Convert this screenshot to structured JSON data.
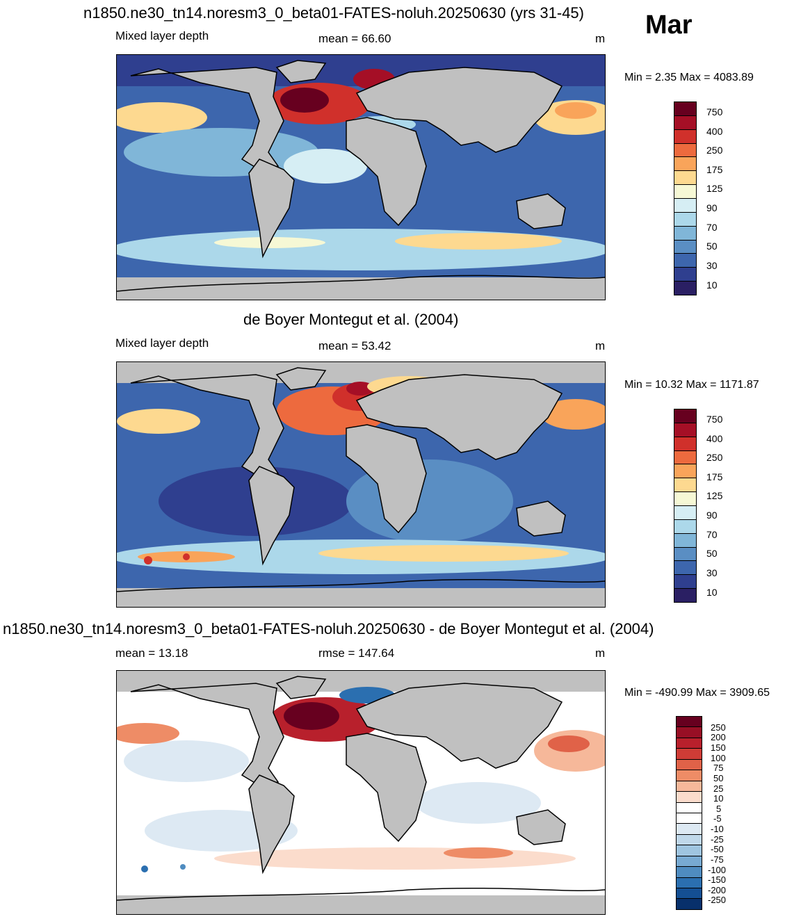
{
  "month": "Mar",
  "panels": [
    {
      "title": "n1850.ne30_tn14.noresm3_0_beta01-FATES-noluh.20250630 (yrs 31-45)",
      "left_label": "Mixed layer depth",
      "center_label": "mean =  66.60",
      "units": "m",
      "minmax": "Min =   2.35 Max = 4083.89",
      "colorbar_labels": [
        "750",
        "400",
        "250",
        "175",
        "125",
        "90",
        "70",
        "50",
        "30",
        "10"
      ]
    },
    {
      "title": "de Boyer Montegut et al. (2004)",
      "left_label": "Mixed layer depth",
      "center_label": "mean =  53.42",
      "units": "m",
      "minmax": "Min =  10.32 Max = 1171.87",
      "colorbar_labels": [
        "750",
        "400",
        "250",
        "175",
        "125",
        "90",
        "70",
        "50",
        "30",
        "10"
      ]
    },
    {
      "title": "n1850.ne30_tn14.noresm3_0_beta01-FATES-noluh.20250630 - de Boyer Montegut et al. (2004)",
      "left_label": "mean =  13.18",
      "center_label": "rmse = 147.64",
      "units": "m",
      "minmax": "Min = -490.99 Max = 3909.65",
      "colorbar_labels": [
        "250",
        "200",
        "150",
        "100",
        "75",
        "50",
        "25",
        "10",
        "5",
        "-5",
        "-10",
        "-25",
        "-50",
        "-75",
        "-100",
        "-150",
        "-200",
        "-250"
      ]
    }
  ],
  "colors": {
    "land": "#c0c0c0",
    "mld_scale": [
      "#67001f",
      "#a50f26",
      "#d0302b",
      "#ed6a3e",
      "#f9a45a",
      "#fdd990",
      "#f6f8d5",
      "#d6eef4",
      "#acd8ea",
      "#80b6d8",
      "#5a8ec3",
      "#3d66ad",
      "#2f3f8f",
      "#2a1f63"
    ],
    "diff_scale": [
      "#67001f",
      "#980f25",
      "#b8202c",
      "#cf3c36",
      "#e06248",
      "#ee8c66",
      "#f6b89a",
      "#fbdccc",
      "#ffffff",
      "#ffffff",
      "#dde9f3",
      "#c0d8ea",
      "#9fc5e0",
      "#78aad2",
      "#4f8cc0",
      "#2b6fb0",
      "#144f93",
      "#08306b"
    ]
  }
}
